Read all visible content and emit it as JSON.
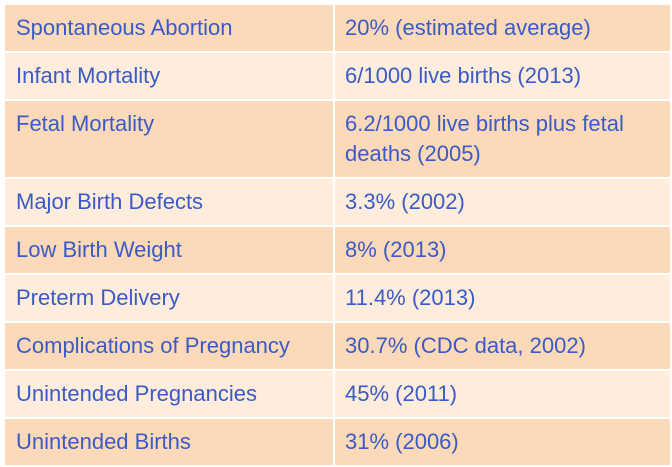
{
  "table": {
    "rows": [
      {
        "label": "Spontaneous Abortion",
        "value": "20% (estimated average)"
      },
      {
        "label": "Infant Mortality",
        "value": "6/1000 live births (2013)"
      },
      {
        "label": "Fetal Mortality",
        "value": "6.2/1000 live births plus fetal deaths (2005)"
      },
      {
        "label": "Major Birth Defects",
        "value": "3.3% (2002)"
      },
      {
        "label": "Low Birth Weight",
        "value": "8% (2013)"
      },
      {
        "label": "Preterm Delivery",
        "value": "11.4% (2013)"
      },
      {
        "label": "Complications of Pregnancy",
        "value": "30.7% (CDC data, 2002)"
      },
      {
        "label": "Unintended Pregnancies",
        "value": "45% (2011)"
      },
      {
        "label": "Unintended Births",
        "value": "31% (2006)"
      }
    ]
  },
  "colors": {
    "row_dark": "#fcd9b8",
    "row_light": "#feecdc",
    "text": "#3a5bc7",
    "divider": "#ffffff"
  }
}
